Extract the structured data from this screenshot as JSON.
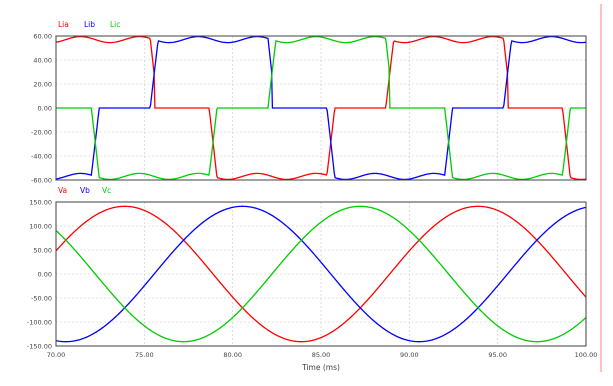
{
  "chart_data": [
    {
      "type": "line",
      "legend": [
        "Lia",
        "Lib",
        "Lic"
      ],
      "legend_placement": "top-left",
      "series_colors": [
        "#ff0000",
        "#0000ff",
        "#00cc00"
      ],
      "yticks": [
        "60.00",
        "40.00",
        "20.00",
        "0.00",
        "-20.00",
        "-40.00",
        "-60.00"
      ],
      "ylim": [
        -60,
        60
      ],
      "xlim": [
        70,
        100
      ],
      "grid": true,
      "waveform": {
        "amplitude": 57,
        "frequency_hz": 50,
        "phase_a_deg": -130,
        "ripple_amplitude": 2.5
      },
      "series": [
        {
          "name": "Lia",
          "color": "#ff0000",
          "phase_shift_deg": 0
        },
        {
          "name": "Lib",
          "color": "#0000ff",
          "phase_shift_deg": -120
        },
        {
          "name": "Lic",
          "color": "#00cc00",
          "phase_shift_deg": 120
        }
      ]
    },
    {
      "type": "line",
      "legend": [
        "Va",
        "Vb",
        "Vc"
      ],
      "legend_placement": "top-left",
      "series_colors": [
        "#ff0000",
        "#0000ff",
        "#00cc00"
      ],
      "yticks": [
        "150.00",
        "100.00",
        "50.00",
        "0.00",
        "-50.00",
        "-100.00",
        "-150.00"
      ],
      "ylim": [
        -150,
        150
      ],
      "xlim": [
        70,
        100
      ],
      "xticks": [
        "70.00",
        "75.00",
        "80.00",
        "85.00",
        "90.00",
        "95.00",
        "100.00"
      ],
      "xlabel": "Time (ms)",
      "grid": true,
      "waveform": {
        "amplitude": 141,
        "frequency_hz": 50,
        "phase_a_deg": -160
      },
      "series": [
        {
          "name": "Va",
          "color": "#ff0000",
          "phase_shift_deg": 0
        },
        {
          "name": "Vb",
          "color": "#0000ff",
          "phase_shift_deg": -120
        },
        {
          "name": "Vc",
          "color": "#00cc00",
          "phase_shift_deg": 120
        }
      ]
    }
  ],
  "colors": {
    "accent_rule": "#ff9999",
    "grid": "#c8c8c8",
    "axis": "#404040"
  }
}
